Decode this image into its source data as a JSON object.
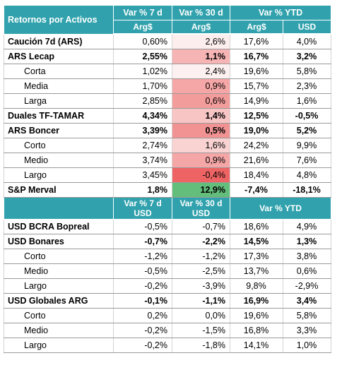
{
  "header": {
    "title": "Retornos por Activos",
    "columns": [
      "Var % 7 d",
      "Var % 30 d",
      "Var % YTD"
    ],
    "subcolumns": [
      "Arg$",
      "Arg$",
      "Arg$",
      "USD"
    ]
  },
  "ars_rows": [
    {
      "name": "Caución 7d (ARS)",
      "values": [
        "0,60%",
        "2,6%",
        "17,6%",
        "4,0%"
      ]
    },
    {
      "name": "ARS Lecap",
      "values": [
        "2,55%",
        "1,1%",
        "16,7%",
        "3,2%"
      ]
    },
    {
      "name": "Corta",
      "values": [
        "1,02%",
        "2,4%",
        "19,6%",
        "5,8%"
      ]
    },
    {
      "name": "Media",
      "values": [
        "1,70%",
        "0,9%",
        "15,7%",
        "2,3%"
      ]
    },
    {
      "name": "Larga",
      "values": [
        "2,85%",
        "0,6%",
        "14,9%",
        "1,6%"
      ]
    },
    {
      "name": "Duales TF-TAMAR",
      "values": [
        "4,34%",
        "1,4%",
        "12,5%",
        "-0,5%"
      ]
    },
    {
      "name": "ARS Boncer",
      "values": [
        "3,39%",
        "0,5%",
        "19,0%",
        "5,2%"
      ]
    },
    {
      "name": "Corto",
      "values": [
        "2,74%",
        "1,6%",
        "24,2%",
        "9,9%"
      ]
    },
    {
      "name": "Medio",
      "values": [
        "3,74%",
        "0,9%",
        "21,6%",
        "7,6%"
      ]
    },
    {
      "name": "Largo",
      "values": [
        "3,45%",
        "-0,4%",
        "18,4%",
        "4,8%"
      ]
    },
    {
      "name": "S&P Merval",
      "values": [
        "1,8%",
        "12,9%",
        "-7,4%",
        "-18,1%"
      ]
    }
  ],
  "usd_header": {
    "columns": [
      [
        "Var % 7 d",
        "USD"
      ],
      [
        "Var % 30 d",
        "USD"
      ]
    ],
    "ytd": "Var % YTD"
  },
  "usd_rows": [
    {
      "name": "USD BCRA Bopreal",
      "values": [
        "-0,5%",
        "-0,7%",
        "18,6%",
        "4,9%"
      ]
    },
    {
      "name": "USD Bonares",
      "values": [
        "-0,7%",
        "-2,2%",
        "14,5%",
        "1,3%"
      ]
    },
    {
      "name": "Corto",
      "values": [
        "-1,2%",
        "-1,2%",
        "17,3%",
        "3,8%"
      ]
    },
    {
      "name": "Medio",
      "values": [
        "-0,5%",
        "-2,5%",
        "13,7%",
        "0,6%"
      ]
    },
    {
      "name": "Largo",
      "values": [
        "-0,2%",
        "-3,9%",
        "9,8%",
        "-2,9%"
      ]
    },
    {
      "name": "USD Globales ARG",
      "values": [
        "-0,1%",
        "-1,1%",
        "16,9%",
        "3,4%"
      ]
    },
    {
      "name": "Corto",
      "values": [
        "0,2%",
        "0,0%",
        "19,6%",
        "5,8%"
      ]
    },
    {
      "name": "Medio",
      "values": [
        "-0,2%",
        "-1,5%",
        "16,8%",
        "3,3%"
      ]
    },
    {
      "name": "Largo",
      "values": [
        "-0,2%",
        "-1,8%",
        "14,1%",
        "1,0%"
      ]
    }
  ]
}
